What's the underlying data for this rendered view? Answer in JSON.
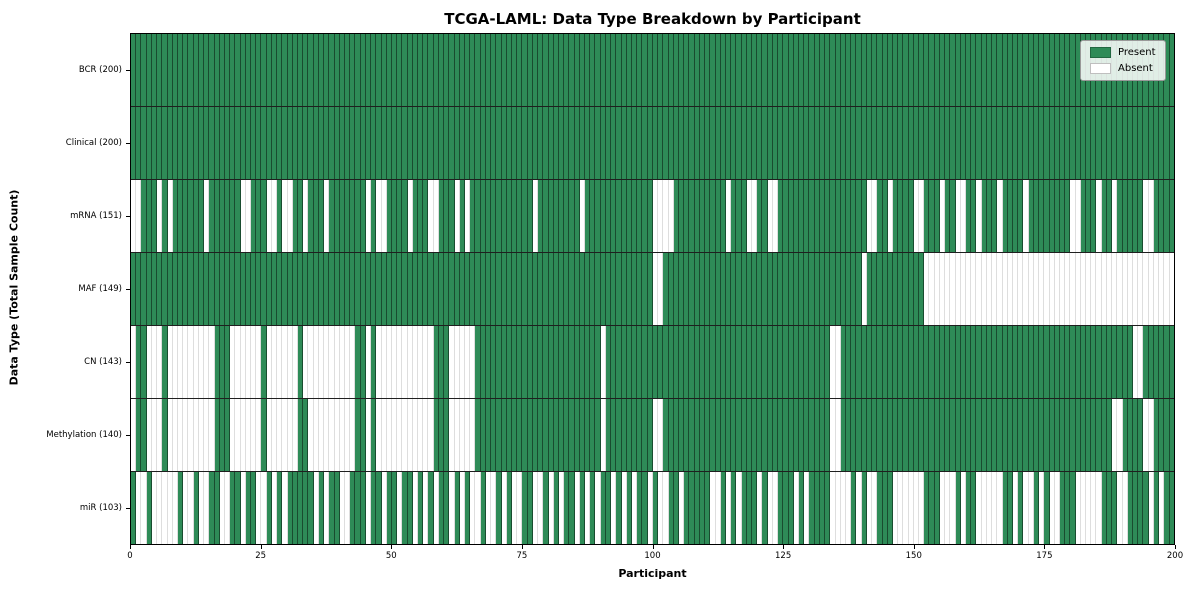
{
  "title": "TCGA-LAML: Data Type Breakdown by Participant",
  "chart_data": {
    "type": "heatmap",
    "title": "TCGA-LAML: Data Type Breakdown by Participant",
    "xlabel": "Participant",
    "ylabel": "Data Type (Total Sample Count)",
    "x_range": [
      0,
      200
    ],
    "x_ticks": [
      "0",
      "25",
      "50",
      "75",
      "100",
      "125",
      "150",
      "175",
      "200"
    ],
    "n_participants": 200,
    "grid": "off",
    "colors": {
      "present": "#2e8b57",
      "absent": "#ffffff",
      "cell_edge_present": "#1e5c3a",
      "cell_edge_absent": "#d9d9d9",
      "row_separator": "#1f1f1f",
      "plot_border": "#000000"
    },
    "legend": {
      "position": "upper right",
      "entries": [
        {
          "label": "Present",
          "color": "#2e8b57"
        },
        {
          "label": "Absent",
          "color": "#ffffff"
        }
      ]
    },
    "rows": [
      {
        "data_type": "BCR",
        "total": 200,
        "label": "BCR (200)",
        "presence_mask": "11111111111111111111111111111111111111111111111111111111111111111111111111111111111111111111111111111111111111111111111111111111111111111111111111111111111111111111111111111111111111111111111111111111"
      },
      {
        "data_type": "Clinical",
        "total": 200,
        "label": "Clinical (200)",
        "presence_mask": "11111111111111111111111111111111111111111111111111111111111111111111111111111111111111111111111111111111111111111111111111111111111111111111111111111111111111111111111111111111111111111111111111111111"
      },
      {
        "data_type": "mRNA",
        "total": 151,
        "label": "mRNA (151)",
        "presence_mask": "00111010111111011111100111001001101110111111101001111011100111010111111111111011111111011111111111110000111111111101110011001111111111111111100110111100111011001101110111101111111100111011011111001111"
      },
      {
        "data_type": "MAF",
        "total": 149,
        "label": "MAF (149)",
        "presence_mask": "11111111111111111111111111111111111111111111111111111111111111111111111111111111111111111111111111110011111111111111111111111111111111111111011111111111000000000000000000000000000000000000000000000000"
      },
      {
        "data_type": "CN",
        "total": 143,
        "label": "CN (143)",
        "presence_mask": "01100010000000001110000001000000100000000001101000000000001110000011111111111111111111111101111111111111111111111111111111111111111111001111111111111111111111111111111111111111111111111111111100111111"
      },
      {
        "data_type": "Methylation",
        "total": 140,
        "label": "Methylation (140)",
        "presence_mask": "01100010000000001110000001000000110000000001101000000000001110000011111111111111111111111101111111110011111111111111111111111111111111001111111111111111111111111111111111111111111111111111001111001111"
      },
      {
        "data_type": "miR",
        "total": 103,
        "label": "miR (103)",
        "presence_mask": "10010000010010011001101100101011111010110011101101101101010110101001001010011001010110101011010101101001101111100101011101001110101111000010100111000000111000101100000110100101001110000011100111101011"
      }
    ]
  }
}
